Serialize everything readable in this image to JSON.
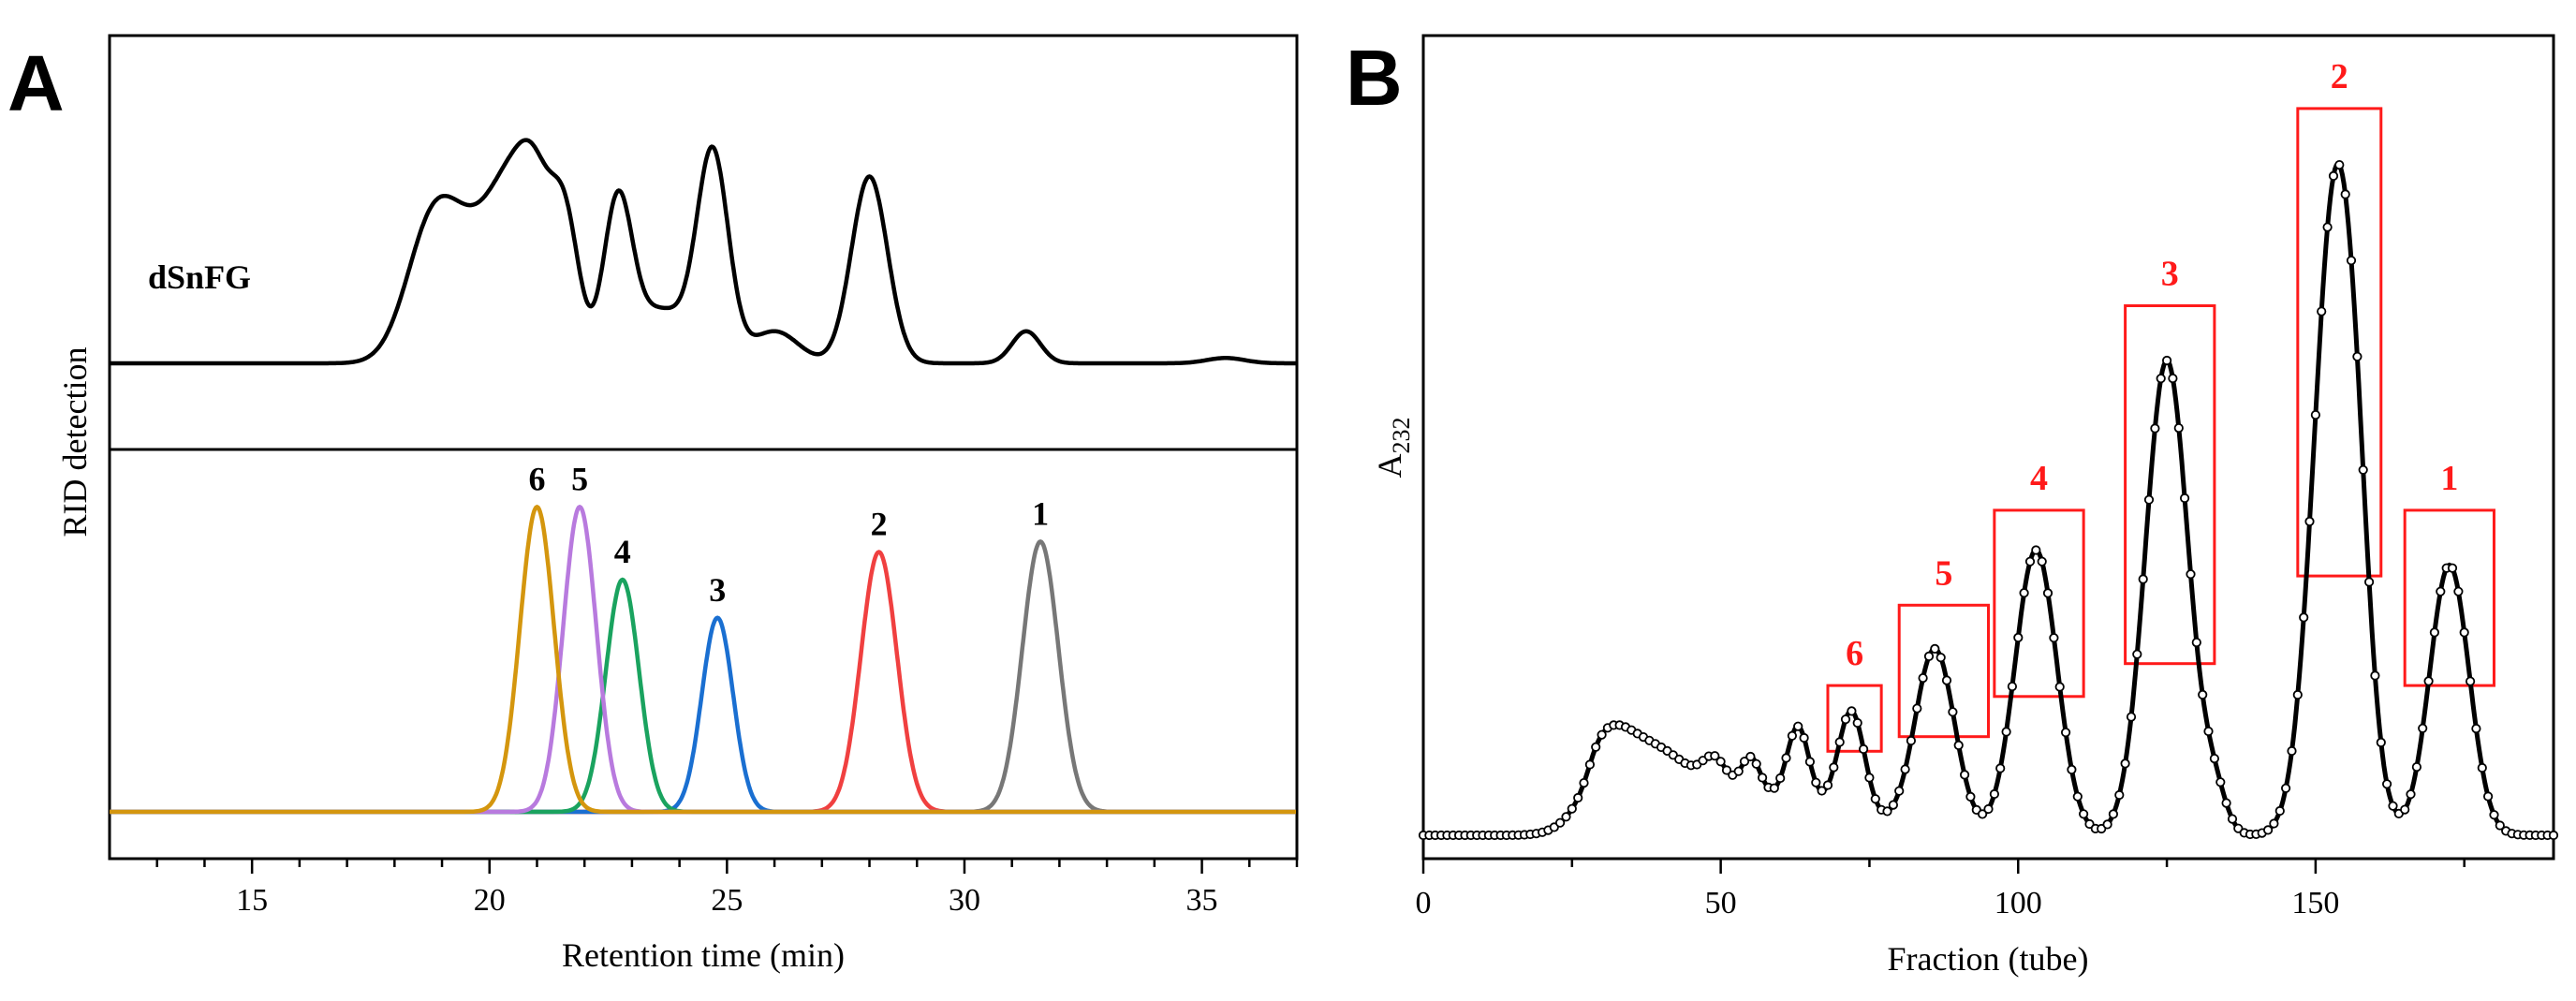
{
  "chart_data": [
    {
      "panel": "A",
      "type": "line",
      "xlabel": "Retention time (min)",
      "ylabel": "RID detection",
      "xlim": [
        12,
        37
      ],
      "xticks": [
        15,
        20,
        25,
        30,
        35
      ],
      "grid": false,
      "top_trace": {
        "name": "dSnFG",
        "baseline": 0.0,
        "components": [
          {
            "center": 18.8,
            "height": 0.5,
            "width": 0.55
          },
          {
            "center": 19.8,
            "height": 0.38,
            "width": 0.6
          },
          {
            "center": 20.5,
            "height": 0.44,
            "width": 0.45
          },
          {
            "center": 21.0,
            "height": 0.44,
            "width": 0.35
          },
          {
            "center": 21.6,
            "height": 0.5,
            "width": 0.3
          },
          {
            "center": 22.7,
            "height": 0.58,
            "width": 0.3
          },
          {
            "center": 23.6,
            "height": 0.2,
            "width": 0.6
          },
          {
            "center": 24.7,
            "height": 0.77,
            "width": 0.33
          },
          {
            "center": 26.0,
            "height": 0.12,
            "width": 0.5
          },
          {
            "center": 28.0,
            "height": 0.7,
            "width": 0.38
          },
          {
            "center": 31.3,
            "height": 0.12,
            "width": 0.3
          },
          {
            "center": 35.5,
            "height": 0.02,
            "width": 0.4
          }
        ]
      },
      "standards": [
        {
          "label": "1",
          "center": 31.6,
          "height": 0.78,
          "width": 0.38,
          "color": "#777777"
        },
        {
          "label": "2",
          "center": 28.2,
          "height": 0.75,
          "width": 0.38,
          "color": "#f04040"
        },
        {
          "label": "3",
          "center": 24.8,
          "height": 0.56,
          "width": 0.33,
          "color": "#1a6fd1"
        },
        {
          "label": "4",
          "center": 22.8,
          "height": 0.67,
          "width": 0.35,
          "color": "#1aa35f"
        },
        {
          "label": "5",
          "center": 21.9,
          "height": 0.88,
          "width": 0.35,
          "color": "#b87ade"
        },
        {
          "label": "6",
          "center": 21.0,
          "height": 0.88,
          "width": 0.36,
          "color": "#d4960e"
        }
      ]
    },
    {
      "panel": "B",
      "type": "line",
      "xlabel": "Fraction (tube)",
      "ylabel": "A232",
      "ylabel_main": "A",
      "ylabel_sub": "232",
      "xlim": [
        0,
        190
      ],
      "ylim": [
        0,
        1.0
      ],
      "xticks": [
        0,
        50,
        100,
        150
      ],
      "grid": false,
      "marker": "open-circle",
      "points_x_range": [
        0,
        190
      ],
      "points_step": 1,
      "baseline_level": 0.015,
      "components": [
        {
          "center": 31,
          "height": 0.08,
          "width": 4.5
        },
        {
          "center": 40,
          "height": 0.05,
          "width": 5
        },
        {
          "center": 49,
          "height": 0.04,
          "width": 2
        },
        {
          "center": 55,
          "height": 0.05,
          "width": 1.6
        },
        {
          "center": 63,
          "height": 0.1,
          "width": 1.8
        },
        {
          "center": 72,
          "height": 0.14,
          "width": 2.2
        },
        {
          "center": 86,
          "height": 0.25,
          "width": 3.3
        },
        {
          "center": 103,
          "height": 0.39,
          "width": 3.5
        },
        {
          "center": 125,
          "height": 0.65,
          "width": 3.6
        },
        {
          "center": 133,
          "height": 0.05,
          "width": 2.0
        },
        {
          "center": 153.5,
          "height": 0.9,
          "width": 3.7
        },
        {
          "center": 157,
          "height": 0.08,
          "width": 2.0
        },
        {
          "center": 172.5,
          "height": 0.37,
          "width": 3.3
        }
      ],
      "boxes": [
        {
          "label": "6",
          "x0": 68,
          "x1": 77,
          "y0": 0.115,
          "y1": 0.205
        },
        {
          "label": "5",
          "x0": 80,
          "x1": 95,
          "y0": 0.135,
          "y1": 0.315
        },
        {
          "label": "4",
          "x0": 96,
          "x1": 111,
          "y0": 0.19,
          "y1": 0.445
        },
        {
          "label": "3",
          "x0": 118,
          "x1": 133,
          "y0": 0.235,
          "y1": 0.725
        },
        {
          "label": "2",
          "x0": 147,
          "x1": 161,
          "y0": 0.355,
          "y1": 0.995
        },
        {
          "label": "1",
          "x0": 165,
          "x1": 180,
          "y0": 0.205,
          "y1": 0.445
        }
      ]
    }
  ],
  "panels": {
    "a_letter": "A",
    "b_letter": "B"
  }
}
